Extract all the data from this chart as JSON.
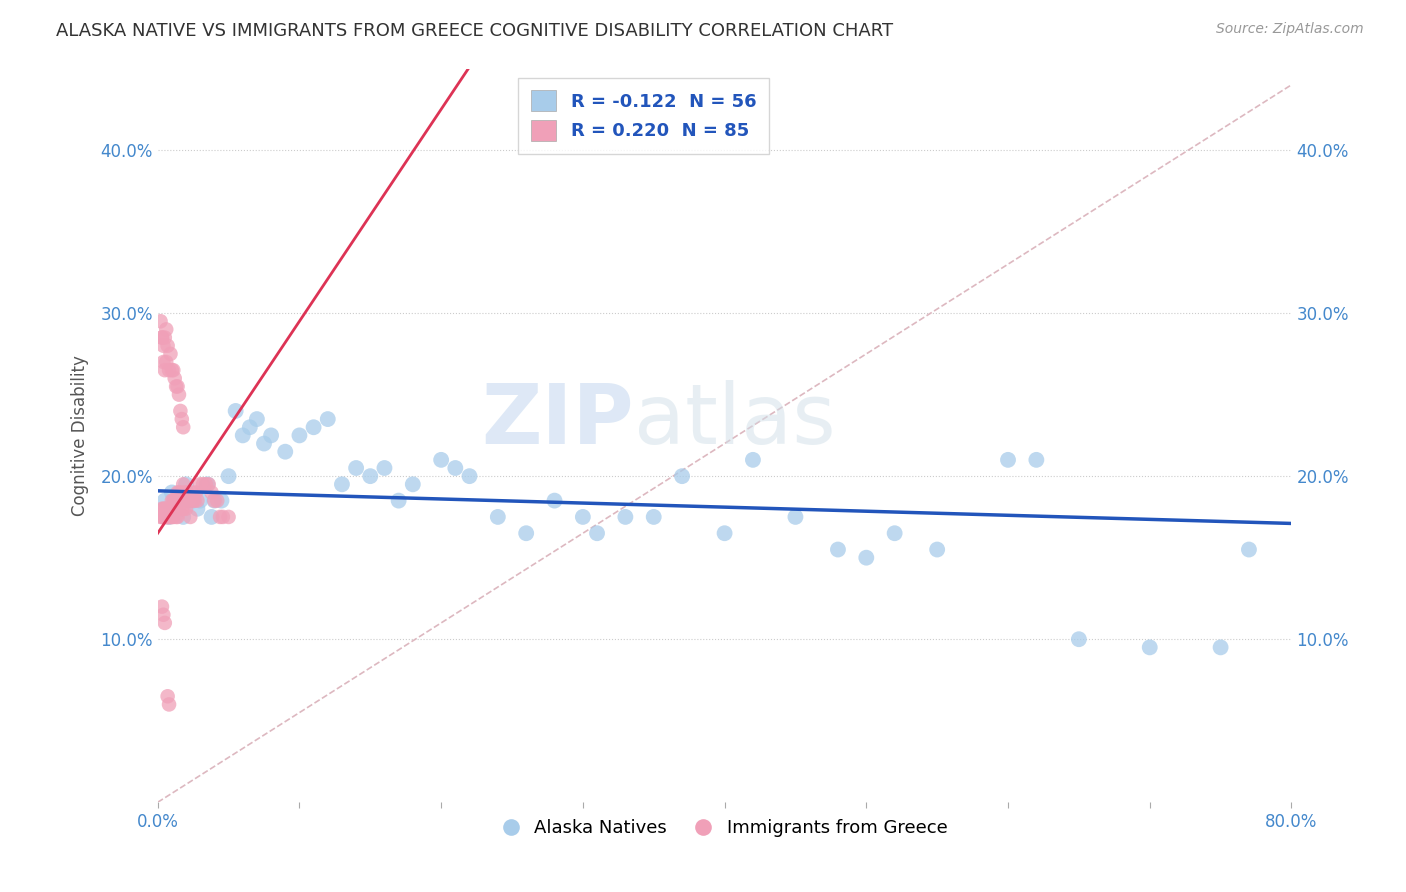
{
  "title": "ALASKA NATIVE VS IMMIGRANTS FROM GREECE COGNITIVE DISABILITY CORRELATION CHART",
  "source": "Source: ZipAtlas.com",
  "ylabel": "Cognitive Disability",
  "xlim": [
    0,
    0.8
  ],
  "ylim": [
    0,
    0.45
  ],
  "legend_r1": "R = -0.122  N = 56",
  "legend_r2": "R = 0.220  N = 85",
  "blue_color": "#a8ccea",
  "pink_color": "#f0a0b8",
  "trend_blue_color": "#2255bb",
  "trend_pink_color": "#dd3355",
  "diag_color": "#ddb8c0",
  "tick_color": "#4488cc",
  "grid_color": "#cccccc",
  "alaska_x": [
    0.005,
    0.008,
    0.01,
    0.012,
    0.015,
    0.018,
    0.02,
    0.022,
    0.025,
    0.028,
    0.03,
    0.035,
    0.038,
    0.04,
    0.045,
    0.05,
    0.055,
    0.06,
    0.065,
    0.07,
    0.075,
    0.08,
    0.09,
    0.1,
    0.11,
    0.12,
    0.13,
    0.14,
    0.15,
    0.16,
    0.17,
    0.18,
    0.2,
    0.21,
    0.22,
    0.24,
    0.26,
    0.28,
    0.3,
    0.31,
    0.33,
    0.35,
    0.37,
    0.4,
    0.42,
    0.45,
    0.48,
    0.5,
    0.52,
    0.55,
    0.6,
    0.62,
    0.65,
    0.7,
    0.75,
    0.77
  ],
  "alaska_y": [
    0.185,
    0.175,
    0.19,
    0.18,
    0.185,
    0.175,
    0.195,
    0.185,
    0.185,
    0.18,
    0.185,
    0.195,
    0.175,
    0.185,
    0.185,
    0.2,
    0.24,
    0.225,
    0.23,
    0.235,
    0.22,
    0.225,
    0.215,
    0.225,
    0.23,
    0.235,
    0.195,
    0.205,
    0.2,
    0.205,
    0.185,
    0.195,
    0.21,
    0.205,
    0.2,
    0.175,
    0.165,
    0.185,
    0.175,
    0.165,
    0.175,
    0.175,
    0.2,
    0.165,
    0.21,
    0.175,
    0.155,
    0.15,
    0.165,
    0.155,
    0.21,
    0.21,
    0.1,
    0.095,
    0.095,
    0.155
  ],
  "greece_x": [
    0.002,
    0.003,
    0.003,
    0.004,
    0.004,
    0.005,
    0.005,
    0.005,
    0.006,
    0.006,
    0.006,
    0.007,
    0.007,
    0.007,
    0.008,
    0.008,
    0.008,
    0.009,
    0.009,
    0.01,
    0.01,
    0.01,
    0.011,
    0.011,
    0.012,
    0.012,
    0.013,
    0.013,
    0.014,
    0.014,
    0.015,
    0.015,
    0.016,
    0.016,
    0.017,
    0.017,
    0.018,
    0.018,
    0.019,
    0.02,
    0.02,
    0.021,
    0.022,
    0.023,
    0.024,
    0.025,
    0.026,
    0.027,
    0.028,
    0.03,
    0.032,
    0.034,
    0.036,
    0.038,
    0.04,
    0.042,
    0.044,
    0.046,
    0.05,
    0.003,
    0.004,
    0.005,
    0.006,
    0.007,
    0.008,
    0.009,
    0.01,
    0.011,
    0.012,
    0.013,
    0.014,
    0.015,
    0.016,
    0.017,
    0.018,
    0.002,
    0.003,
    0.004,
    0.005,
    0.006,
    0.007,
    0.008,
    0.003,
    0.004,
    0.005
  ],
  "greece_y": [
    0.175,
    0.18,
    0.175,
    0.175,
    0.18,
    0.175,
    0.175,
    0.18,
    0.175,
    0.18,
    0.175,
    0.175,
    0.18,
    0.175,
    0.175,
    0.18,
    0.175,
    0.175,
    0.175,
    0.175,
    0.185,
    0.175,
    0.175,
    0.185,
    0.185,
    0.18,
    0.185,
    0.175,
    0.19,
    0.175,
    0.19,
    0.18,
    0.185,
    0.185,
    0.19,
    0.18,
    0.195,
    0.18,
    0.185,
    0.19,
    0.18,
    0.19,
    0.185,
    0.175,
    0.19,
    0.185,
    0.185,
    0.19,
    0.185,
    0.195,
    0.195,
    0.195,
    0.195,
    0.19,
    0.185,
    0.185,
    0.175,
    0.175,
    0.175,
    0.285,
    0.27,
    0.285,
    0.29,
    0.28,
    0.265,
    0.275,
    0.265,
    0.265,
    0.26,
    0.255,
    0.255,
    0.25,
    0.24,
    0.235,
    0.23,
    0.295,
    0.285,
    0.28,
    0.265,
    0.27,
    0.065,
    0.06,
    0.12,
    0.115,
    0.11
  ]
}
